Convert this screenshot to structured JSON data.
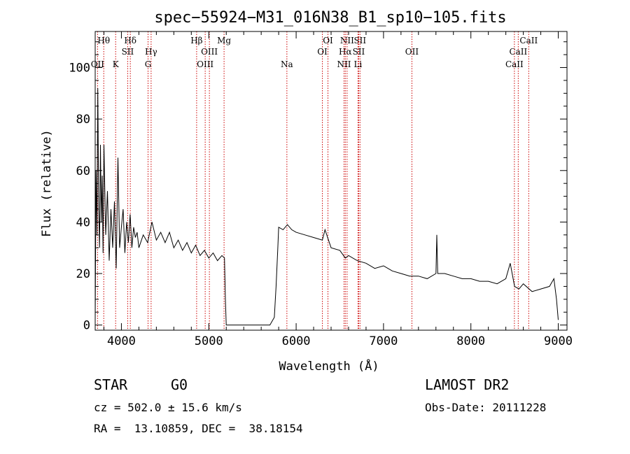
{
  "chart_data": {
    "type": "line",
    "title": "spec−55924−M31_016N38_B1_sp10−105.fits",
    "xlabel": "Wavelength (Å)",
    "ylabel": "Flux (relative)",
    "xlim": [
      3700,
      9100
    ],
    "ylim": [
      -2,
      114
    ],
    "xticks": [
      4000,
      5000,
      6000,
      7000,
      8000,
      9000
    ],
    "yticks": [
      0,
      20,
      40,
      60,
      80,
      100
    ],
    "line_color": "#000000",
    "marker_color": "#cc0000",
    "series": [
      {
        "x": [
          3700,
          3710,
          3720,
          3730,
          3740,
          3750,
          3760,
          3770,
          3780,
          3790,
          3800,
          3820,
          3840,
          3860,
          3880,
          3900,
          3920,
          3940,
          3960,
          3980,
          4000,
          4020,
          4040,
          4060,
          4080,
          4100,
          4120,
          4140,
          4160,
          4180,
          4200,
          4250,
          4300,
          4350,
          4400,
          4450,
          4500,
          4550,
          4600,
          4650,
          4700,
          4750,
          4800,
          4850,
          4900,
          4950,
          5000,
          5050,
          5100,
          5150,
          5180,
          5190,
          5200,
          5500,
          5700,
          5750,
          5770,
          5790,
          5800,
          5850,
          5900,
          5950,
          6000,
          6100,
          6200,
          6300,
          6330,
          6400,
          6500,
          6563,
          6600,
          6700,
          6800,
          6900,
          7000,
          7100,
          7200,
          7300,
          7400,
          7500,
          7600,
          7610,
          7620,
          7700,
          7800,
          7900,
          8000,
          8100,
          8200,
          8300,
          8400,
          8450,
          8500,
          8550,
          8600,
          8700,
          8800,
          8900,
          8950,
          8980,
          9000
        ],
        "y": [
          2,
          60,
          35,
          92,
          45,
          30,
          70,
          40,
          58,
          28,
          70,
          35,
          52,
          25,
          45,
          30,
          48,
          22,
          65,
          30,
          38,
          45,
          28,
          40,
          32,
          43,
          30,
          38,
          34,
          36,
          30,
          35,
          32,
          40,
          33,
          36,
          32,
          36,
          30,
          33,
          29,
          32,
          28,
          31,
          27,
          29,
          26,
          28,
          25,
          27,
          26,
          10,
          0,
          0,
          0,
          3,
          15,
          30,
          38,
          37,
          39,
          37,
          36,
          35,
          34,
          33,
          37,
          30,
          29,
          26,
          27,
          25,
          24,
          22,
          23,
          21,
          20,
          19,
          19,
          18,
          20,
          35,
          20,
          20,
          19,
          18,
          18,
          17,
          17,
          16,
          18,
          24,
          15,
          14,
          16,
          13,
          14,
          15,
          18,
          10,
          2
        ]
      }
    ],
    "lines": [
      {
        "label": "Hθ",
        "x": 3798,
        "row": 0
      },
      {
        "label": "OII",
        "x": 3727,
        "row": 2
      },
      {
        "label": "K",
        "x": 3934,
        "row": 2
      },
      {
        "label": "Hδ",
        "x": 4102,
        "row": 0
      },
      {
        "label": "SII",
        "x": 4072,
        "row": 1
      },
      {
        "label": "Hγ",
        "x": 4340,
        "row": 1
      },
      {
        "label": "G",
        "x": 4305,
        "row": 2
      },
      {
        "label": "Hβ",
        "x": 4861,
        "row": 0
      },
      {
        "label": "OIII",
        "x": 5007,
        "row": 1
      },
      {
        "label": "OIII",
        "x": 4959,
        "row": 2
      },
      {
        "label": "Mg",
        "x": 5175,
        "row": 0
      },
      {
        "label": "Na",
        "x": 5894,
        "row": 2
      },
      {
        "label": "OI",
        "x": 6364,
        "row": 0
      },
      {
        "label": "OI",
        "x": 6300,
        "row": 1
      },
      {
        "label": "NII",
        "x": 6583,
        "row": 0
      },
      {
        "label": "Hα",
        "x": 6563,
        "row": 1
      },
      {
        "label": "NII",
        "x": 6548,
        "row": 2
      },
      {
        "label": "SII",
        "x": 6731,
        "row": 0
      },
      {
        "label": "SII",
        "x": 6716,
        "row": 1
      },
      {
        "label": "Li",
        "x": 6708,
        "row": 2
      },
      {
        "label": "OII",
        "x": 7325,
        "row": 1
      },
      {
        "label": "CaII",
        "x": 8662,
        "row": 0
      },
      {
        "label": "CaII",
        "x": 8542,
        "row": 1
      },
      {
        "label": "CaII",
        "x": 8498,
        "row": 2
      }
    ]
  },
  "info": {
    "class_label": "STAR",
    "subclass_label": "G0",
    "survey": "LAMOST DR2",
    "cz_text": "cz = 502.0 ± 15.6 km/s",
    "obs_date": "Obs-Date: 20111228",
    "coords": "RA =  13.10859, DEC =  38.18154"
  }
}
